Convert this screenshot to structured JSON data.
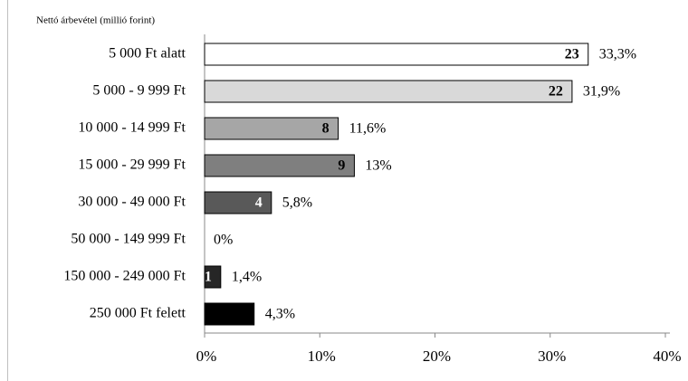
{
  "chart_data": {
    "type": "bar",
    "orientation": "horizontal",
    "title": "Nettó árbevétel (millió forint)",
    "categories": [
      "5 000 Ft alatt",
      "5 000 - 9 999 Ft",
      "10 000 - 14 999 Ft",
      "15 000 - 29 999 Ft",
      "30 000 - 49 000 Ft",
      "50 000 - 149 999 Ft",
      "150 000 - 249 000 Ft",
      "250 000 Ft felett"
    ],
    "values": [
      33.3,
      31.9,
      11.6,
      13,
      5.8,
      0,
      1.4,
      4.3
    ],
    "value_labels": [
      "33,3%",
      "31,9%",
      "11,6%",
      "13%",
      "5,8%",
      "0%",
      "1,4%",
      "4,3%"
    ],
    "counts": [
      23,
      22,
      8,
      9,
      4,
      null,
      1,
      null
    ],
    "colors": [
      "#ffffff",
      "#d9d9d9",
      "#a6a6a6",
      "#7f7f7f",
      "#595959",
      "#404040",
      "#262626",
      "#000000"
    ],
    "xlim": [
      0,
      40
    ],
    "xticks": [
      {
        "value": 0,
        "label": "0%"
      },
      {
        "value": 10,
        "label": "10%"
      },
      {
        "value": 20,
        "label": "20%"
      },
      {
        "value": 30,
        "label": "30%"
      },
      {
        "value": 40,
        "label": "40%"
      }
    ],
    "grid": false
  }
}
